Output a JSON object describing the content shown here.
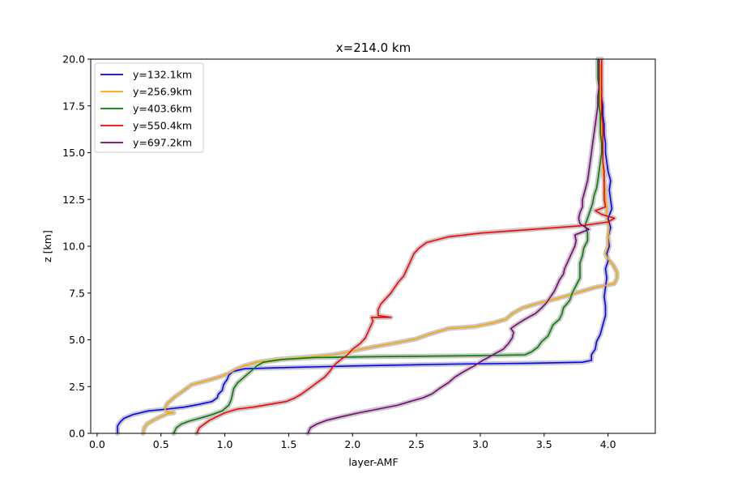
{
  "chart_data": {
    "type": "line",
    "title": "x=214.0 km",
    "xlabel": "layer-AMF",
    "ylabel": "z [km]",
    "xlim": [
      -0.05,
      4.37
    ],
    "ylim": [
      0,
      20
    ],
    "xticks": [
      "0.0",
      "0.5",
      "1.0",
      "1.5",
      "2.0",
      "2.5",
      "3.0",
      "3.5",
      "4.0"
    ],
    "yticks": [
      "0.0",
      "2.5",
      "5.0",
      "7.5",
      "10.0",
      "12.5",
      "15.0",
      "17.5",
      "20.0"
    ],
    "grid": false,
    "legend_position": "upper-left",
    "uncertainty_band_color": "#c8c8c8",
    "series": [
      {
        "name": "y=132.1km",
        "color": "#0000ff",
        "points": [
          [
            0.16,
            0.0
          ],
          [
            0.16,
            0.4
          ],
          [
            0.18,
            0.6
          ],
          [
            0.21,
            0.8
          ],
          [
            0.28,
            1.0
          ],
          [
            0.4,
            1.2
          ],
          [
            0.55,
            1.3
          ],
          [
            0.68,
            1.4
          ],
          [
            0.8,
            1.55
          ],
          [
            0.9,
            1.7
          ],
          [
            0.94,
            1.9
          ],
          [
            0.95,
            2.1
          ],
          [
            0.98,
            2.3
          ],
          [
            0.99,
            2.6
          ],
          [
            1.02,
            2.9
          ],
          [
            1.03,
            3.1
          ],
          [
            1.06,
            3.3
          ],
          [
            1.15,
            3.45
          ],
          [
            1.4,
            3.5
          ],
          [
            2.0,
            3.6
          ],
          [
            2.8,
            3.7
          ],
          [
            3.4,
            3.75
          ],
          [
            3.8,
            3.8
          ],
          [
            3.87,
            3.9
          ],
          [
            3.87,
            4.2
          ],
          [
            3.9,
            4.5
          ],
          [
            3.91,
            4.9
          ],
          [
            3.94,
            5.3
          ],
          [
            3.96,
            5.8
          ],
          [
            3.98,
            6.3
          ],
          [
            3.98,
            6.8
          ],
          [
            3.97,
            7.3
          ],
          [
            3.98,
            7.8
          ],
          [
            3.99,
            8.3
          ],
          [
            3.98,
            8.8
          ],
          [
            4.0,
            9.2
          ],
          [
            3.99,
            9.6
          ],
          [
            4.01,
            10.0
          ],
          [
            4.0,
            10.5
          ],
          [
            4.02,
            11.0
          ],
          [
            4.0,
            11.5
          ],
          [
            4.03,
            12.0
          ],
          [
            4.02,
            12.5
          ],
          [
            4.01,
            13.0
          ],
          [
            4.02,
            13.5
          ],
          [
            4.0,
            14.0
          ],
          [
            3.99,
            14.5
          ],
          [
            3.98,
            15.0
          ],
          [
            3.98,
            15.5
          ],
          [
            3.97,
            16.0
          ],
          [
            3.97,
            16.5
          ],
          [
            3.96,
            17.0
          ],
          [
            3.96,
            17.5
          ],
          [
            3.95,
            18.0
          ],
          [
            3.95,
            18.5
          ],
          [
            3.94,
            19.0
          ],
          [
            3.94,
            19.5
          ],
          [
            3.93,
            20.0
          ]
        ]
      },
      {
        "name": "y=256.9km",
        "color": "#ffa500",
        "points": [
          [
            0.36,
            0.0
          ],
          [
            0.37,
            0.3
          ],
          [
            0.39,
            0.5
          ],
          [
            0.44,
            0.7
          ],
          [
            0.5,
            0.9
          ],
          [
            0.55,
            1.05
          ],
          [
            0.6,
            1.1
          ],
          [
            0.55,
            1.15
          ],
          [
            0.53,
            1.3
          ],
          [
            0.55,
            1.6
          ],
          [
            0.6,
            1.9
          ],
          [
            0.66,
            2.2
          ],
          [
            0.74,
            2.6
          ],
          [
            0.85,
            2.8
          ],
          [
            0.95,
            3.0
          ],
          [
            1.03,
            3.2
          ],
          [
            1.08,
            3.4
          ],
          [
            1.15,
            3.6
          ],
          [
            1.25,
            3.8
          ],
          [
            1.4,
            3.95
          ],
          [
            1.6,
            4.05
          ],
          [
            1.85,
            4.2
          ],
          [
            2.0,
            4.4
          ],
          [
            2.15,
            4.6
          ],
          [
            2.35,
            4.85
          ],
          [
            2.5,
            5.05
          ],
          [
            2.6,
            5.3
          ],
          [
            2.75,
            5.6
          ],
          [
            2.95,
            5.7
          ],
          [
            3.1,
            5.9
          ],
          [
            3.2,
            6.1
          ],
          [
            3.25,
            6.4
          ],
          [
            3.33,
            6.7
          ],
          [
            3.45,
            6.95
          ],
          [
            3.6,
            7.2
          ],
          [
            3.75,
            7.5
          ],
          [
            3.9,
            7.8
          ],
          [
            4.05,
            8.0
          ],
          [
            4.07,
            8.3
          ],
          [
            4.07,
            8.6
          ],
          [
            4.04,
            9.0
          ],
          [
            4.0,
            9.3
          ],
          [
            3.98,
            9.6
          ],
          [
            4.0,
            10.0
          ],
          [
            4.0,
            10.5
          ],
          [
            4.01,
            11.0
          ],
          [
            3.99,
            11.5
          ],
          [
            3.99,
            12.0
          ],
          [
            3.98,
            12.5
          ],
          [
            3.98,
            13.0
          ],
          [
            3.97,
            13.5
          ],
          [
            3.96,
            14.0
          ],
          [
            3.96,
            14.5
          ],
          [
            3.96,
            15.0
          ],
          [
            3.95,
            15.5
          ],
          [
            3.95,
            16.0
          ],
          [
            3.95,
            16.5
          ],
          [
            3.95,
            17.0
          ],
          [
            3.94,
            17.5
          ],
          [
            3.94,
            18.0
          ],
          [
            3.94,
            18.5
          ],
          [
            3.94,
            19.0
          ],
          [
            3.94,
            19.5
          ],
          [
            3.93,
            20.0
          ]
        ]
      },
      {
        "name": "y=403.6km",
        "color": "#008000",
        "points": [
          [
            0.6,
            0.0
          ],
          [
            0.62,
            0.3
          ],
          [
            0.66,
            0.5
          ],
          [
            0.72,
            0.65
          ],
          [
            0.8,
            0.8
          ],
          [
            0.9,
            1.0
          ],
          [
            0.98,
            1.2
          ],
          [
            1.03,
            1.5
          ],
          [
            1.05,
            1.8
          ],
          [
            1.06,
            2.1
          ],
          [
            1.07,
            2.4
          ],
          [
            1.1,
            2.7
          ],
          [
            1.15,
            3.0
          ],
          [
            1.2,
            3.3
          ],
          [
            1.25,
            3.6
          ],
          [
            1.3,
            3.8
          ],
          [
            1.45,
            3.95
          ],
          [
            1.7,
            4.05
          ],
          [
            2.2,
            4.1
          ],
          [
            3.0,
            4.15
          ],
          [
            3.35,
            4.2
          ],
          [
            3.4,
            4.35
          ],
          [
            3.45,
            4.6
          ],
          [
            3.48,
            4.9
          ],
          [
            3.53,
            5.2
          ],
          [
            3.55,
            5.5
          ],
          [
            3.57,
            5.8
          ],
          [
            3.62,
            6.1
          ],
          [
            3.64,
            6.4
          ],
          [
            3.65,
            6.7
          ],
          [
            3.7,
            7.1
          ],
          [
            3.72,
            7.5
          ],
          [
            3.75,
            7.9
          ],
          [
            3.78,
            8.3
          ],
          [
            3.78,
            8.7
          ],
          [
            3.78,
            9.1
          ],
          [
            3.8,
            9.5
          ],
          [
            3.81,
            9.9
          ],
          [
            3.84,
            10.3
          ],
          [
            3.84,
            10.7
          ],
          [
            3.82,
            11.1
          ],
          [
            3.84,
            11.5
          ],
          [
            3.86,
            11.9
          ],
          [
            3.88,
            12.3
          ],
          [
            3.89,
            12.7
          ],
          [
            3.91,
            13.1
          ],
          [
            3.92,
            13.5
          ],
          [
            3.93,
            14.0
          ],
          [
            3.94,
            14.5
          ],
          [
            3.95,
            15.0
          ],
          [
            3.95,
            15.5
          ],
          [
            3.94,
            16.0
          ],
          [
            3.94,
            16.5
          ],
          [
            3.94,
            17.0
          ],
          [
            3.93,
            17.5
          ],
          [
            3.93,
            18.0
          ],
          [
            3.93,
            18.5
          ],
          [
            3.92,
            19.0
          ],
          [
            3.92,
            19.5
          ],
          [
            3.92,
            20.0
          ]
        ]
      },
      {
        "name": "y=550.4km",
        "color": "#ff0000",
        "points": [
          [
            0.78,
            0.0
          ],
          [
            0.8,
            0.3
          ],
          [
            0.84,
            0.5
          ],
          [
            0.88,
            0.7
          ],
          [
            0.94,
            0.9
          ],
          [
            1.0,
            1.1
          ],
          [
            1.1,
            1.3
          ],
          [
            1.22,
            1.4
          ],
          [
            1.35,
            1.55
          ],
          [
            1.48,
            1.7
          ],
          [
            1.55,
            1.9
          ],
          [
            1.6,
            2.1
          ],
          [
            1.66,
            2.4
          ],
          [
            1.72,
            2.7
          ],
          [
            1.78,
            3.0
          ],
          [
            1.82,
            3.3
          ],
          [
            1.85,
            3.6
          ],
          [
            1.9,
            3.9
          ],
          [
            1.96,
            4.2
          ],
          [
            2.0,
            4.5
          ],
          [
            2.06,
            4.8
          ],
          [
            2.1,
            5.1
          ],
          [
            2.12,
            5.4
          ],
          [
            2.14,
            5.7
          ],
          [
            2.16,
            6.0
          ],
          [
            2.15,
            6.2
          ],
          [
            2.3,
            6.2
          ],
          [
            2.2,
            6.3
          ],
          [
            2.2,
            6.6
          ],
          [
            2.22,
            6.9
          ],
          [
            2.26,
            7.2
          ],
          [
            2.3,
            7.5
          ],
          [
            2.33,
            7.8
          ],
          [
            2.36,
            8.1
          ],
          [
            2.4,
            8.4
          ],
          [
            2.42,
            8.7
          ],
          [
            2.44,
            9.0
          ],
          [
            2.46,
            9.3
          ],
          [
            2.48,
            9.6
          ],
          [
            2.52,
            9.9
          ],
          [
            2.58,
            10.2
          ],
          [
            2.75,
            10.5
          ],
          [
            3.0,
            10.7
          ],
          [
            3.3,
            10.85
          ],
          [
            3.6,
            11.0
          ],
          [
            3.8,
            11.1
          ],
          [
            4.0,
            11.3
          ],
          [
            4.05,
            11.5
          ],
          [
            3.95,
            11.7
          ],
          [
            3.9,
            11.9
          ],
          [
            3.98,
            12.1
          ],
          [
            3.97,
            12.5
          ],
          [
            3.97,
            13.0
          ],
          [
            3.97,
            13.5
          ],
          [
            3.97,
            14.0
          ],
          [
            3.96,
            14.5
          ],
          [
            3.96,
            15.0
          ],
          [
            3.96,
            15.5
          ],
          [
            3.96,
            16.0
          ],
          [
            3.96,
            16.5
          ],
          [
            3.95,
            17.0
          ],
          [
            3.95,
            17.5
          ],
          [
            3.95,
            18.0
          ],
          [
            3.95,
            18.5
          ],
          [
            3.95,
            19.0
          ],
          [
            3.95,
            19.5
          ],
          [
            3.95,
            20.0
          ]
        ]
      },
      {
        "name": "y=697.2km",
        "color": "#800080",
        "points": [
          [
            1.65,
            0.0
          ],
          [
            1.67,
            0.3
          ],
          [
            1.72,
            0.5
          ],
          [
            1.8,
            0.7
          ],
          [
            1.92,
            0.9
          ],
          [
            2.05,
            1.1
          ],
          [
            2.2,
            1.3
          ],
          [
            2.35,
            1.5
          ],
          [
            2.45,
            1.7
          ],
          [
            2.55,
            1.9
          ],
          [
            2.62,
            2.1
          ],
          [
            2.68,
            2.4
          ],
          [
            2.75,
            2.7
          ],
          [
            2.8,
            3.0
          ],
          [
            2.87,
            3.3
          ],
          [
            2.95,
            3.6
          ],
          [
            3.02,
            3.9
          ],
          [
            3.1,
            4.2
          ],
          [
            3.18,
            4.5
          ],
          [
            3.22,
            4.8
          ],
          [
            3.25,
            5.1
          ],
          [
            3.26,
            5.4
          ],
          [
            3.24,
            5.6
          ],
          [
            3.28,
            5.8
          ],
          [
            3.35,
            6.1
          ],
          [
            3.43,
            6.4
          ],
          [
            3.48,
            6.7
          ],
          [
            3.52,
            7.0
          ],
          [
            3.55,
            7.3
          ],
          [
            3.58,
            7.6
          ],
          [
            3.6,
            7.9
          ],
          [
            3.62,
            8.2
          ],
          [
            3.65,
            8.5
          ],
          [
            3.66,
            8.8
          ],
          [
            3.68,
            9.1
          ],
          [
            3.7,
            9.4
          ],
          [
            3.72,
            9.7
          ],
          [
            3.74,
            10.0
          ],
          [
            3.75,
            10.3
          ],
          [
            3.74,
            10.6
          ],
          [
            3.85,
            10.9
          ],
          [
            3.78,
            11.2
          ],
          [
            3.77,
            11.5
          ],
          [
            3.78,
            11.8
          ],
          [
            3.8,
            12.1
          ],
          [
            3.8,
            12.5
          ],
          [
            3.82,
            13.0
          ],
          [
            3.84,
            13.5
          ],
          [
            3.85,
            14.0
          ],
          [
            3.86,
            14.5
          ],
          [
            3.87,
            15.0
          ],
          [
            3.88,
            15.5
          ],
          [
            3.89,
            16.0
          ],
          [
            3.9,
            16.5
          ],
          [
            3.91,
            17.0
          ],
          [
            3.92,
            17.5
          ],
          [
            3.92,
            18.0
          ],
          [
            3.93,
            18.5
          ],
          [
            3.93,
            19.0
          ],
          [
            3.93,
            19.5
          ],
          [
            3.93,
            20.0
          ]
        ]
      }
    ]
  }
}
